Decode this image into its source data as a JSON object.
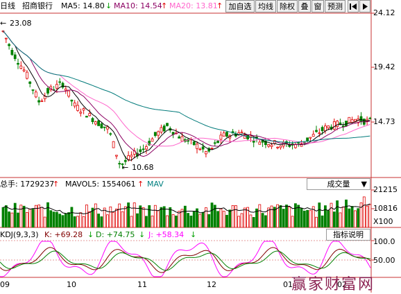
{
  "colors": {
    "up": "#e00000",
    "down": "#008000",
    "ma5": "#000000",
    "ma10": "#8b0062",
    "ma20": "#ff66cc",
    "ma60": "#007a7a",
    "vol_ma": "#008080",
    "kdj_k": "#800000",
    "kdj_d": "#008000",
    "kdj_j": "#ff00ff"
  },
  "header": {
    "period": "日线",
    "stock_name": "招商银行",
    "ma5": "MA5: 14.80",
    "ma5_arrow": "↓",
    "ma10": "MA10: 14.54",
    "ma10_arrow": "↑",
    "ma20": "MA20: 13.81",
    "ma20_arrow": "↑"
  },
  "toolbar": {
    "buttons": [
      "加自选",
      "均线",
      "除权",
      "叠",
      "窗",
      "预测"
    ],
    "nav_icon": "triangle-left-bar-icon"
  },
  "price_panel": {
    "y_labels": [
      "24.12",
      "19.42",
      "14.73"
    ],
    "high_marker": "23.08",
    "low_marker": "10.68"
  },
  "volume_panel": {
    "total_label": "总手: 1729237",
    "total_arrow": "↑",
    "mavol_label": "MAVOL5: 1554061",
    "mavol_arrow": "↑",
    "mav_label": "MAV",
    "dropdown": "成交量",
    "y_labels": [
      "21215",
      "10816",
      "X100"
    ]
  },
  "kdj_panel": {
    "title": "KDJ(9,3,3)",
    "k": "K: +69.28",
    "k_arrow": "↓",
    "d": "D: +74.75",
    "d_arrow": "↓",
    "j": "J: +58.34",
    "j_arrow": "↓",
    "button": "指标说明",
    "y_labels": [
      "100.0",
      "50.00"
    ]
  },
  "x_axis": {
    "labels": [
      "09",
      "10",
      "11",
      "12",
      "01",
      "02"
    ]
  },
  "watermark": "赢家财富网"
}
